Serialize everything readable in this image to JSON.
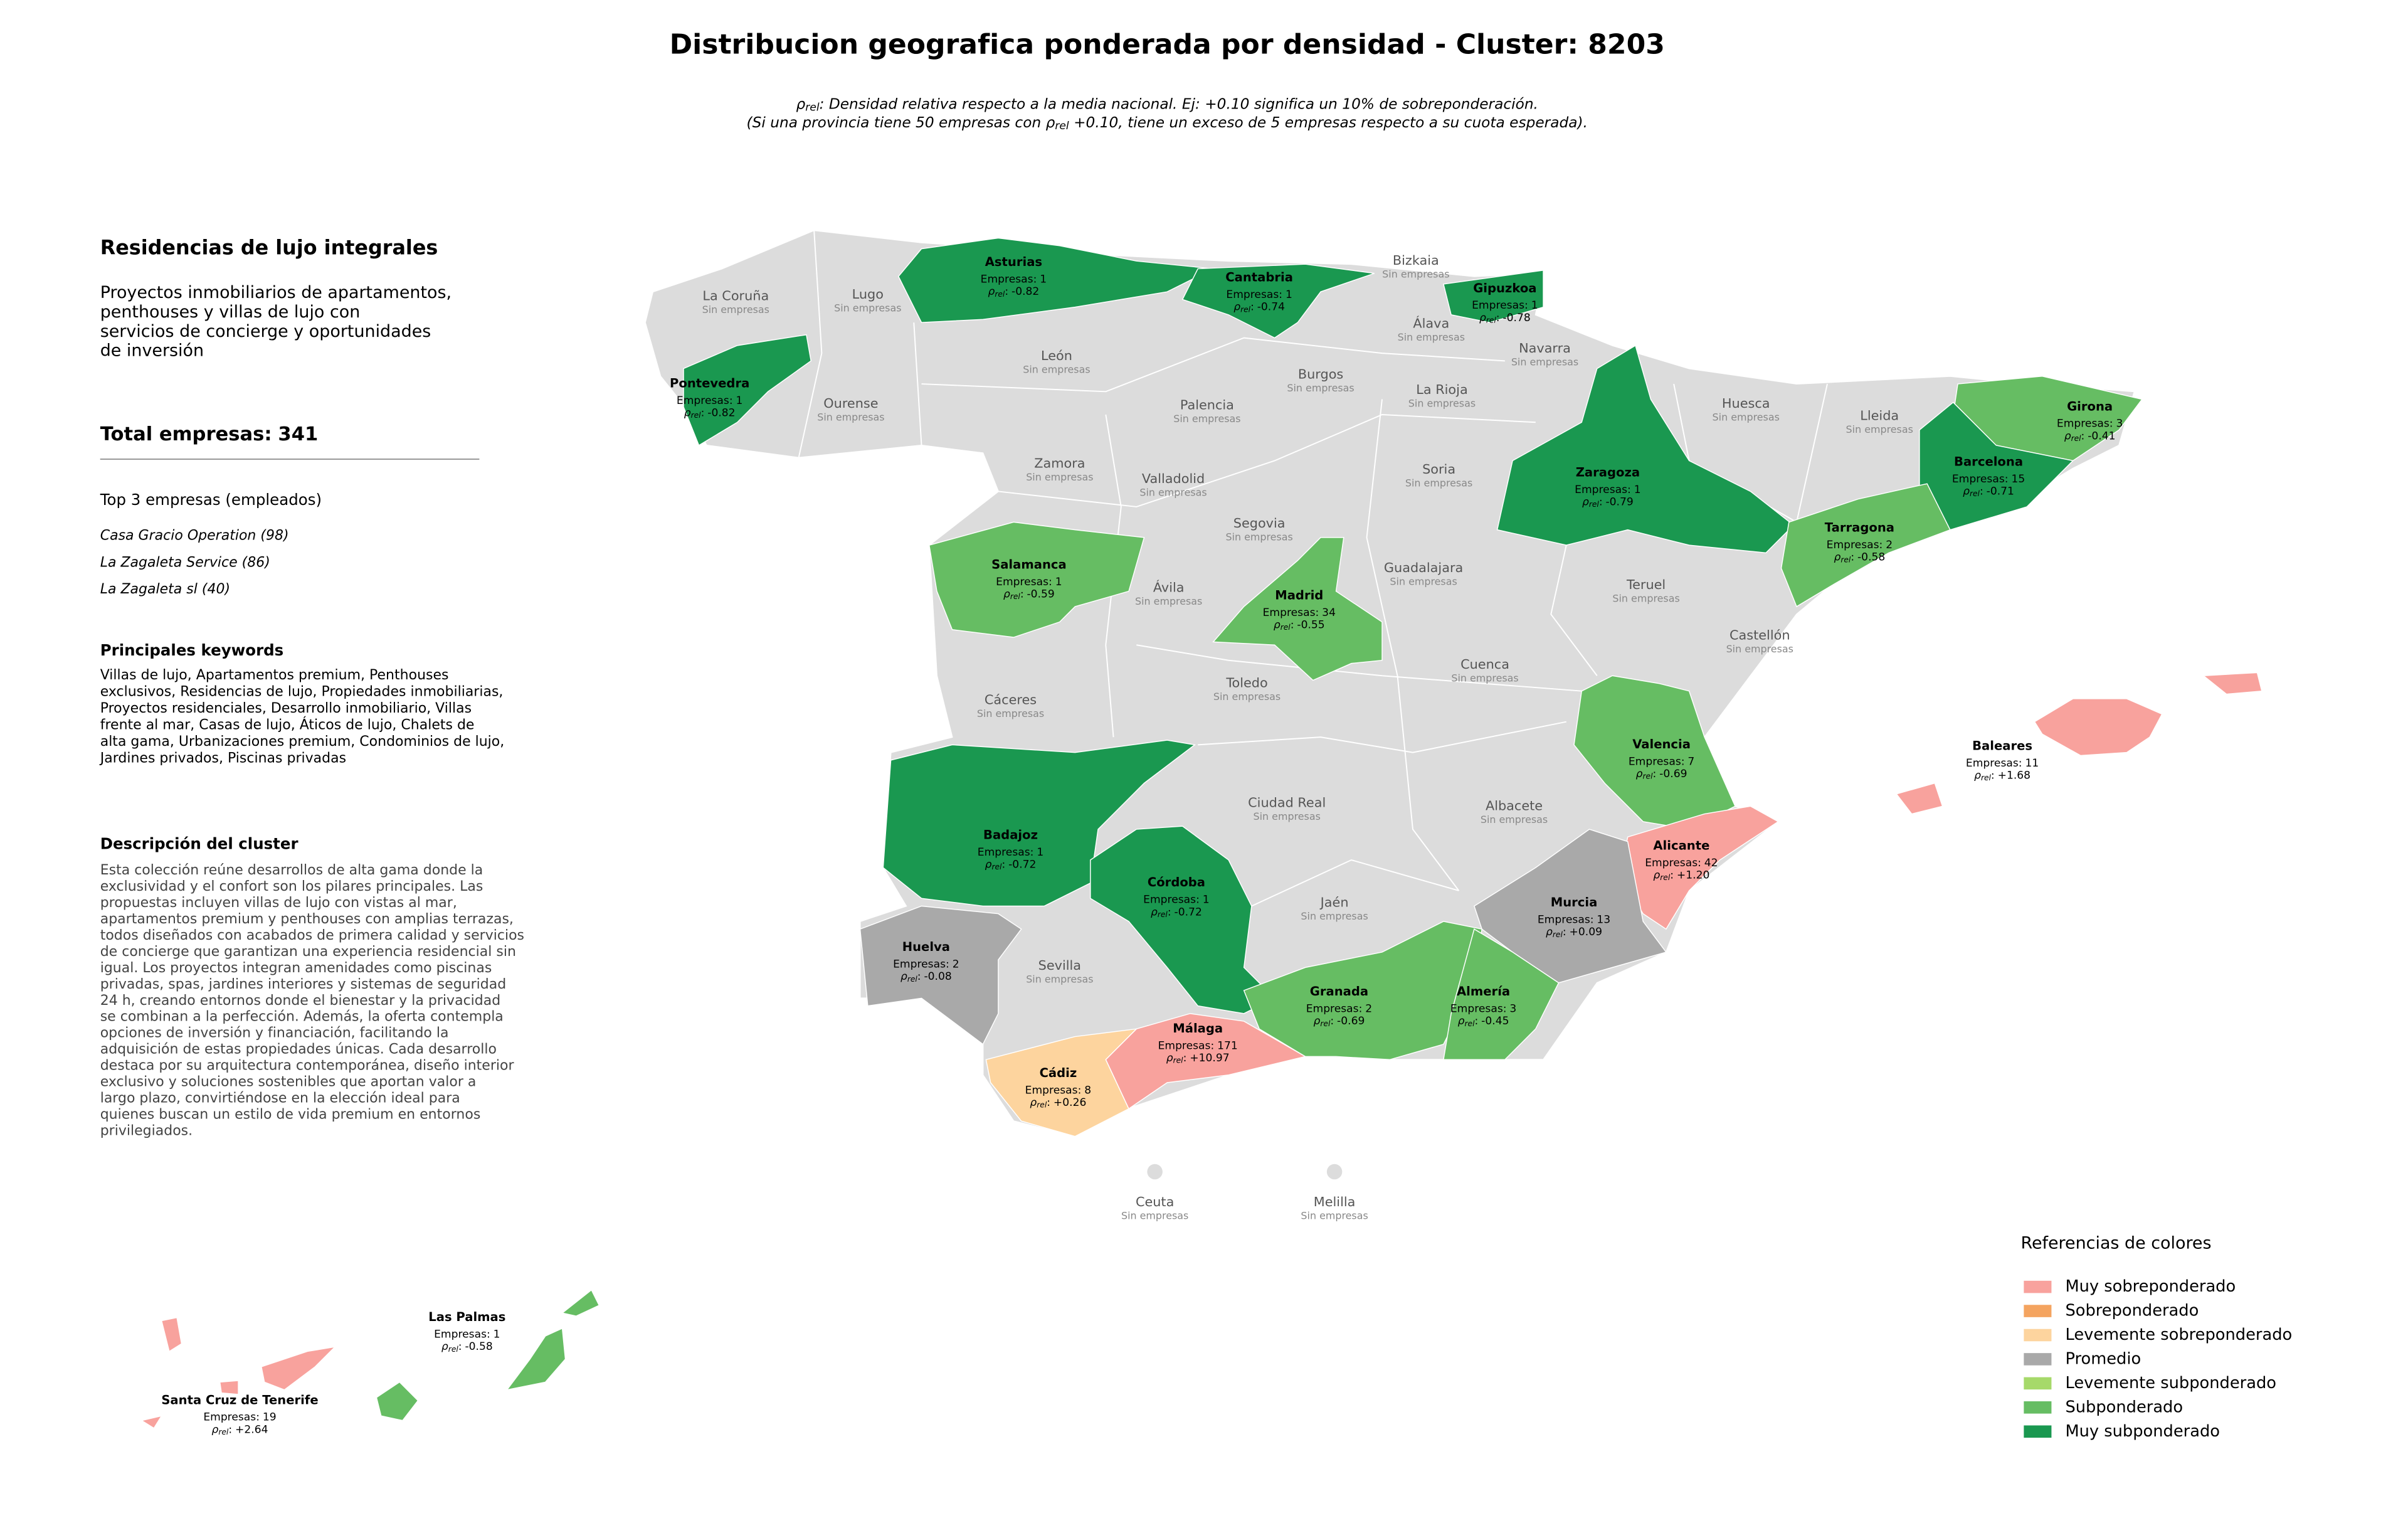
{
  "title": "Distribucion geografica ponderada por densidad - Cluster: 8203",
  "subtitle": [
    {
      "sym": "ρ",
      "sub": "rel",
      "post": ": Densidad relativa respecto a la media nacional. Ej: +0.10 significa un 10% de sobreponderación."
    },
    {
      "pre": "(Si una provincia tiene 50 empresas con ",
      "sym": "ρ",
      "sub": "rel",
      "post": " +0.10, tiene un exceso de 5 empresas respecto a su cuota esperada)."
    }
  ],
  "sidebar": {
    "heading": "Residencias de lujo integrales",
    "summary": [
      "Proyectos inmobiliarios de apartamentos,",
      "penthouses y villas de lujo con",
      "servicios de concierge y oportunidades",
      "de inversión"
    ],
    "total_label": "Total empresas:",
    "total": 341,
    "top_heading": "Top 3 empresas (empleados)",
    "top": [
      "Casa Gracio Operation (98)",
      "La Zagaleta Service (86)",
      "La Zagaleta sl (40)"
    ],
    "keywords_heading": "Principales keywords",
    "keywords": [
      "Villas de lujo, Apartamentos premium, Penthouses",
      "exclusivos, Residencias de lujo, Propiedades inmobiliarias,",
      "Proyectos residenciales, Desarrollo inmobiliario, Villas",
      "frente al mar, Casas de lujo, Áticos de lujo, Chalets de",
      "alta gama, Urbanizaciones premium, Condominios de lujo,",
      "Jardines privados, Piscinas privadas"
    ],
    "description_heading": "Descripción del cluster",
    "description": [
      "Esta colección reúne desarrollos de alta gama donde la",
      "exclusividad y el confort son los pilares principales. Las",
      "propuestas incluyen villas de lujo con vistas al mar,",
      "apartamentos premium y penthouses con amplias terrazas,",
      "todos diseñados con acabados de primera calidad y servicios",
      "de concierge que garantizan una experiencia residencial sin",
      "igual. Los proyectos integran amenidades como piscinas",
      "privadas, spas, jardines interiores y sistemas de seguridad",
      "24 h, creando entornos donde el bienestar y la privacidad",
      "se combinan a la perfección. Además, la oferta contempla",
      "opciones de inversión y financiación, facilitando la",
      "adquisición de estas propiedades únicas. Cada desarrollo",
      "destaca por su arquitectura contemporánea, diseño interior",
      "exclusivo y soluciones sostenibles que aportan valor a",
      "largo plazo, convirtiéndose en la elección ideal para",
      "quienes buscan un estilo de vida premium en entornos",
      "privilegiados."
    ]
  },
  "labels": {
    "none": "Sin empresas",
    "empresas": "Empresas:",
    "rho": "ρ",
    "rho_sub": "rel",
    "rho_sep": ":"
  },
  "provinces": [
    {
      "name": "La Coruña"
    },
    {
      "name": "Lugo"
    },
    {
      "name": "Bizkaia"
    },
    {
      "name": "Álava"
    },
    {
      "name": "Navarra"
    },
    {
      "name": "León"
    },
    {
      "name": "Burgos"
    },
    {
      "name": "La Rioja"
    },
    {
      "name": "Huesca"
    },
    {
      "name": "Lleida"
    },
    {
      "name": "Ourense"
    },
    {
      "name": "Palencia"
    },
    {
      "name": "Zamora"
    },
    {
      "name": "Soria"
    },
    {
      "name": "Valladolid"
    },
    {
      "name": "Segovia"
    },
    {
      "name": "Guadalajara"
    },
    {
      "name": "Ávila"
    },
    {
      "name": "Teruel"
    },
    {
      "name": "Castellón"
    },
    {
      "name": "Cuenca"
    },
    {
      "name": "Toledo"
    },
    {
      "name": "Cáceres"
    },
    {
      "name": "Ciudad Real"
    },
    {
      "name": "Albacete"
    },
    {
      "name": "Jaén"
    },
    {
      "name": "Sevilla"
    },
    {
      "name": "Ceuta"
    },
    {
      "name": "Melilla"
    },
    {
      "name": "Asturias",
      "empresas": 1,
      "rho": "-0.82",
      "color": "#1a9850"
    },
    {
      "name": "Cantabria",
      "empresas": 1,
      "rho": "-0.74",
      "color": "#1a9850"
    },
    {
      "name": "Gipuzkoa",
      "empresas": 1,
      "rho": "-0.78",
      "color": "#1a9850"
    },
    {
      "name": "Pontevedra",
      "empresas": 1,
      "rho": "-0.82",
      "color": "#1a9850"
    },
    {
      "name": "Zaragoza",
      "empresas": 1,
      "rho": "-0.79",
      "color": "#1a9850"
    },
    {
      "name": "Girona",
      "empresas": 3,
      "rho": "-0.41",
      "color": "#66bd63"
    },
    {
      "name": "Barcelona",
      "empresas": 15,
      "rho": "-0.71",
      "color": "#1a9850"
    },
    {
      "name": "Tarragona",
      "empresas": 2,
      "rho": "-0.58",
      "color": "#66bd63"
    },
    {
      "name": "Salamanca",
      "empresas": 1,
      "rho": "-0.59",
      "color": "#66bd63"
    },
    {
      "name": "Madrid",
      "empresas": 34,
      "rho": "-0.55",
      "color": "#66bd63"
    },
    {
      "name": "Valencia",
      "empresas": 7,
      "rho": "-0.69",
      "color": "#66bd63"
    },
    {
      "name": "Baleares",
      "empresas": 11,
      "rho": "+1.68",
      "color": "#f8a29d"
    },
    {
      "name": "Badajoz",
      "empresas": 1,
      "rho": "-0.72",
      "color": "#1a9850"
    },
    {
      "name": "Alicante",
      "empresas": 42,
      "rho": "+1.20",
      "color": "#f8a29d"
    },
    {
      "name": "Córdoba",
      "empresas": 1,
      "rho": "-0.72",
      "color": "#1a9850"
    },
    {
      "name": "Murcia",
      "empresas": 13,
      "rho": "+0.09",
      "color": "#a9a9a9"
    },
    {
      "name": "Huelva",
      "empresas": 2,
      "rho": "-0.08",
      "color": "#a9a9a9"
    },
    {
      "name": "Granada",
      "empresas": 2,
      "rho": "-0.69",
      "color": "#66bd63"
    },
    {
      "name": "Almería",
      "empresas": 3,
      "rho": "-0.45",
      "color": "#66bd63"
    },
    {
      "name": "Málaga",
      "empresas": 171,
      "rho": "+10.97",
      "color": "#f8a29d"
    },
    {
      "name": "Cádiz",
      "empresas": 8,
      "rho": "+0.26",
      "color": "#fdd49e"
    },
    {
      "name": "Las Palmas",
      "empresas": 1,
      "rho": "-0.58",
      "color": "#66bd63"
    },
    {
      "name": "Santa Cruz de Tenerife",
      "empresas": 19,
      "rho": "+2.64",
      "color": "#f8a29d"
    }
  ],
  "legend": {
    "title": "Referencias de colores",
    "items": [
      {
        "label": "Muy sobreponderado",
        "color": "#f8a29d"
      },
      {
        "label": "Sobreponderado",
        "color": "#f4a460"
      },
      {
        "label": "Levemente sobreponderado",
        "color": "#fdd49e"
      },
      {
        "label": "Promedio",
        "color": "#a9a9a9"
      },
      {
        "label": "Levemente subponderado",
        "color": "#a6d96a"
      },
      {
        "label": "Subponderado",
        "color": "#66bd63"
      },
      {
        "label": "Muy subponderado",
        "color": "#1a9850"
      }
    ]
  }
}
